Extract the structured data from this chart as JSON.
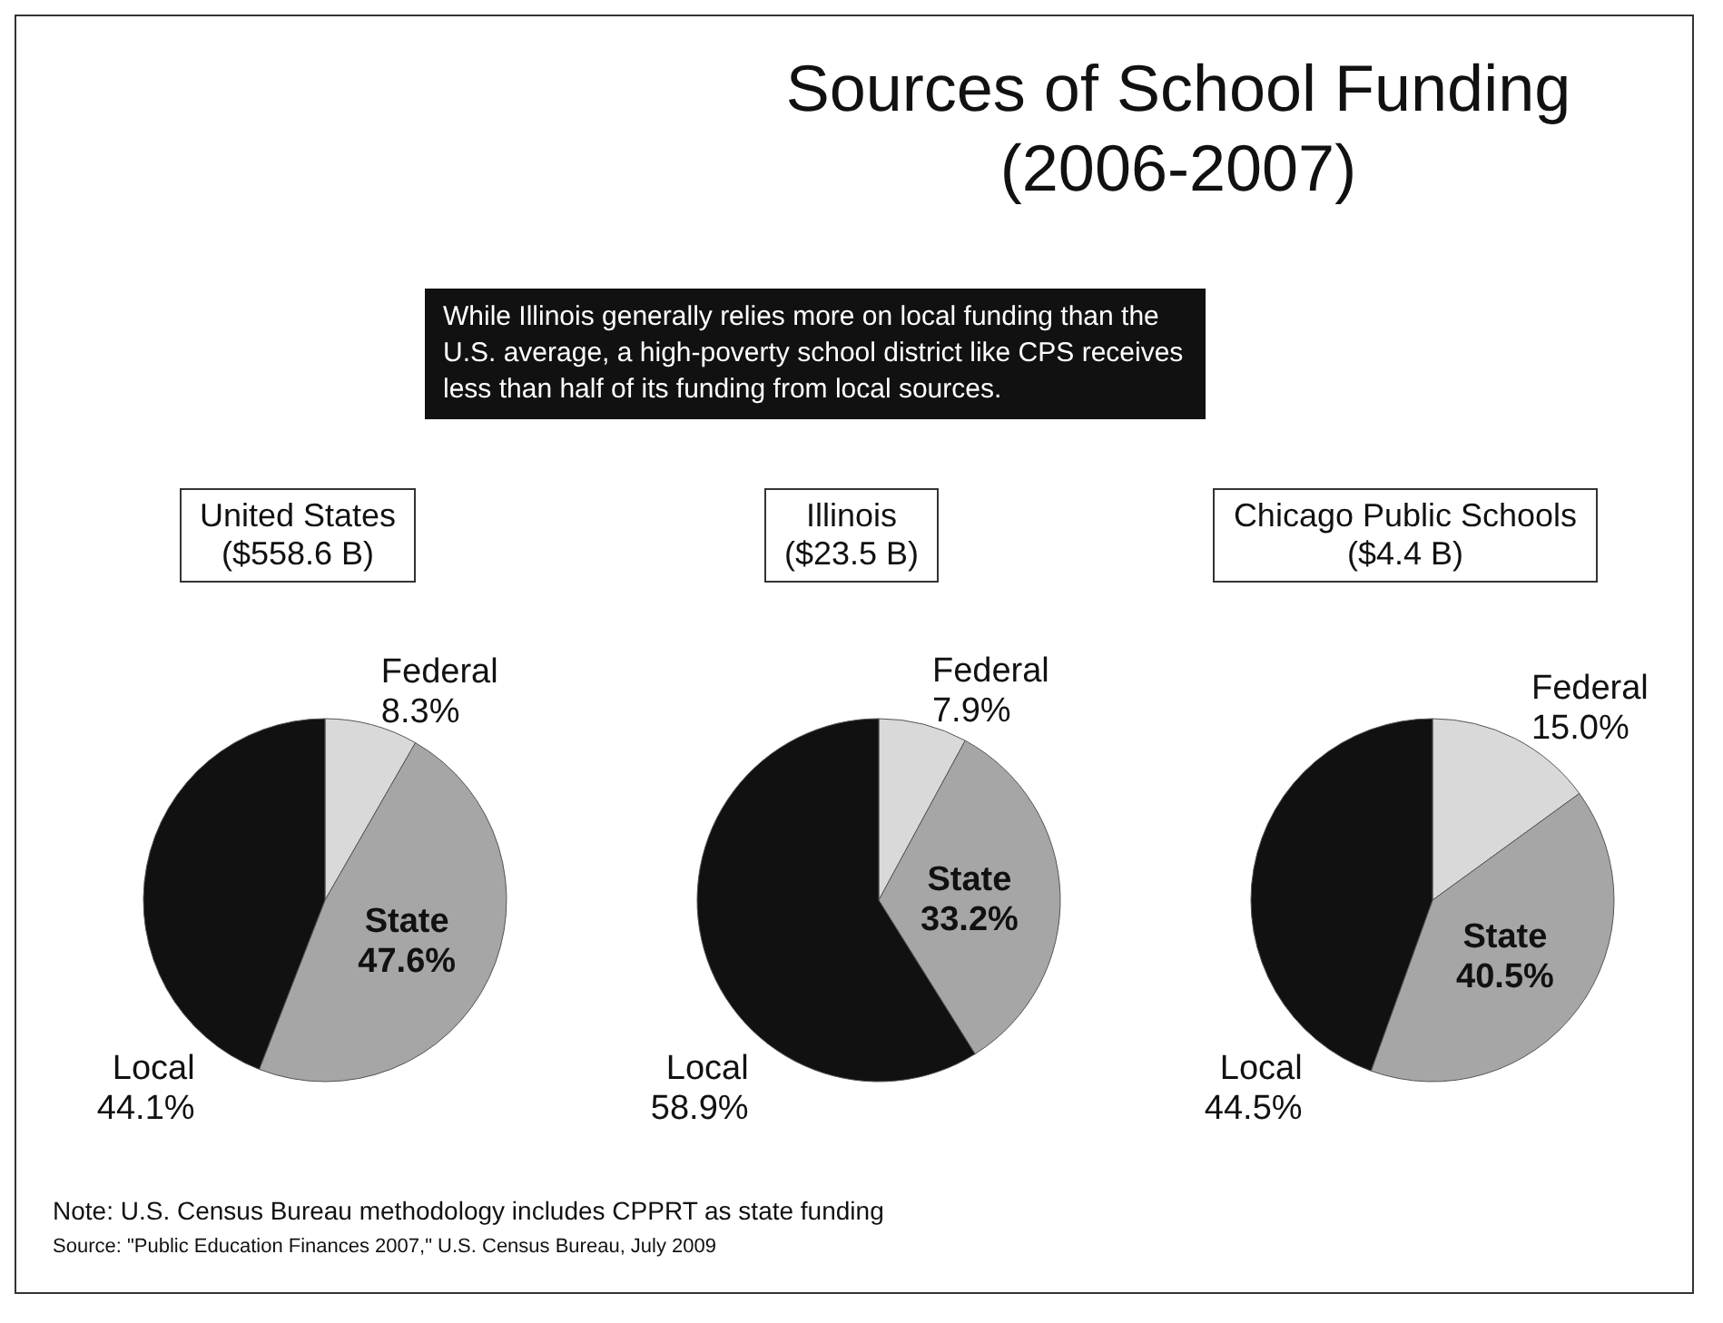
{
  "chart_data": [
    {
      "type": "pie",
      "title": "Sources of School Funding\n(2006-2007)",
      "subtitle": "United States\n($558.6 B)",
      "categories": [
        "Federal",
        "State",
        "Local"
      ],
      "values": [
        8.3,
        47.6,
        44.1
      ],
      "value_labels": [
        "8.3%",
        "47.6%",
        "44.1%"
      ],
      "colors": [
        "#d9d9d9",
        "#a6a6a6",
        "#111111"
      ],
      "annotations": [
        "While Illinois generally relies more on local funding than the U.S. average, a high-poverty school district like CPS receives less than half of its funding from local sources.",
        "Note:  U.S. Census Bureau methodology includes CPPRT as state funding",
        "Source:  \"Public Education Finances 2007,\" U.S. Census Bureau, July 2009"
      ]
    },
    {
      "type": "pie",
      "subtitle": "Illinois\n($23.5 B)",
      "categories": [
        "Federal",
        "State",
        "Local"
      ],
      "values": [
        7.9,
        33.2,
        58.9
      ],
      "value_labels": [
        "7.9%",
        "33.2%",
        "58.9%"
      ],
      "colors": [
        "#d9d9d9",
        "#a6a6a6",
        "#111111"
      ]
    },
    {
      "type": "pie",
      "subtitle": "Chicago Public Schools\n($4.4 B)",
      "categories": [
        "Federal",
        "State",
        "Local"
      ],
      "values": [
        15.0,
        40.5,
        44.5
      ],
      "value_labels": [
        "15.0%",
        "40.5%",
        "44.5%"
      ],
      "colors": [
        "#d9d9d9",
        "#a6a6a6",
        "#111111"
      ]
    }
  ]
}
